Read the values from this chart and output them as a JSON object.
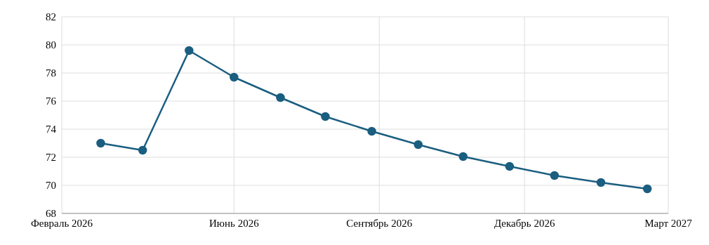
{
  "chart_data": {
    "type": "line",
    "x": [
      "2026-02-15",
      "2026-03-15",
      "2026-04-15",
      "2026-05-15",
      "2026-06-15",
      "2026-07-15",
      "2026-08-15",
      "2026-09-15",
      "2026-10-15",
      "2026-11-15",
      "2026-12-15",
      "2027-01-15",
      "2027-02-15"
    ],
    "series": [
      {
        "color": "#1a5e80",
        "values": [
          73.0,
          72.5,
          79.6,
          77.7,
          76.25,
          74.9,
          73.85,
          72.9,
          72.05,
          71.35,
          70.7,
          70.2,
          69.75
        ]
      }
    ],
    "xlim": [
      "2026-01-20",
      "2027-03-01"
    ],
    "xticks": [
      {
        "value": "2026-01-20",
        "label": "Февраль 2026"
      },
      {
        "value": "2026-05-15",
        "label": "Июнь 2026"
      },
      {
        "value": "2026-08-20",
        "label": "Сентябрь 2026"
      },
      {
        "value": "2026-11-25",
        "label": "Декабрь 2026"
      },
      {
        "value": "2027-03-01",
        "label": "Март 2027"
      }
    ],
    "ylim": [
      68,
      82
    ],
    "yticks": [
      68,
      70,
      72,
      74,
      76,
      78,
      80,
      82
    ],
    "grid": true,
    "marker": "circle",
    "line_style": "solid",
    "legend": false
  }
}
